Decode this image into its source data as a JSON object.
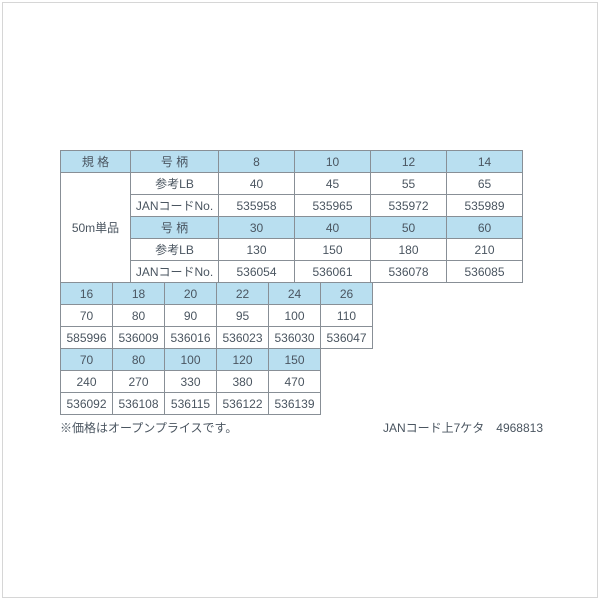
{
  "colors": {
    "header_bg": "#b9dff0",
    "border": "#888f96",
    "text": "#4a5560",
    "page_bg": "#ffffff",
    "frame_border": "#d6d6d6"
  },
  "table1": {
    "row0": {
      "c0": "規 格",
      "c1": "号 柄",
      "c2": "8",
      "c3": "10",
      "c4": "12",
      "c5": "14"
    },
    "row1": {
      "c0": "50m単品",
      "c1": "参考LB",
      "c2": "40",
      "c3": "45",
      "c4": "55",
      "c5": "65"
    },
    "row2": {
      "c1": "JANコードNo.",
      "c2": "535958",
      "c3": "535965",
      "c4": "535972",
      "c5": "535989"
    },
    "row3": {
      "c1": "号 柄",
      "c2": "30",
      "c3": "40",
      "c4": "50",
      "c5": "60"
    },
    "row4": {
      "c1": "参考LB",
      "c2": "130",
      "c3": "150",
      "c4": "180",
      "c5": "210"
    },
    "row5": {
      "c1": "JANコードNo.",
      "c2": "536054",
      "c3": "536061",
      "c4": "536078",
      "c5": "536085"
    }
  },
  "table2": {
    "row0": {
      "c0": "16",
      "c1": "18",
      "c2": "20",
      "c3": "22",
      "c4": "24",
      "c5": "26"
    },
    "row1": {
      "c0": "70",
      "c1": "80",
      "c2": "90",
      "c3": "95",
      "c4": "100",
      "c5": "110"
    },
    "row2": {
      "c0": "585996",
      "c1": "536009",
      "c2": "536016",
      "c3": "536023",
      "c4": "536030",
      "c5": "536047"
    },
    "row3": {
      "c0": "70",
      "c1": "80",
      "c2": "100",
      "c3": "120",
      "c4": "150"
    },
    "row4": {
      "c0": "240",
      "c1": "270",
      "c2": "330",
      "c3": "380",
      "c4": "470"
    },
    "row5": {
      "c0": "536092",
      "c1": "536108",
      "c2": "536115",
      "c3": "536122",
      "c4": "536139"
    }
  },
  "footer": {
    "left": "※価格はオープンプライスです。",
    "right": "JANコード上7ケタ　4968813"
  }
}
